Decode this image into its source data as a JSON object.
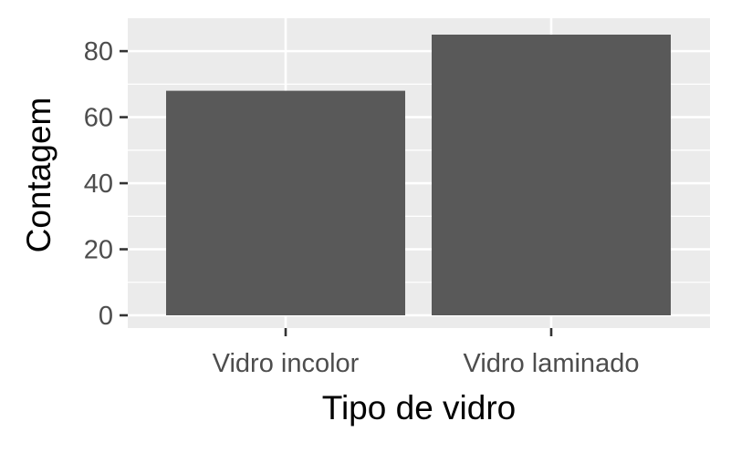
{
  "chart_data": {
    "type": "bar",
    "categories": [
      "Vidro incolor",
      "Vidro laminado"
    ],
    "values": [
      68,
      85
    ],
    "xlabel": "Tipo de vidro",
    "ylabel": "Contagem",
    "ylim": [
      0,
      89
    ],
    "yticks": [
      0,
      20,
      40,
      60,
      80
    ],
    "grid": true,
    "legend": "none",
    "colors": {
      "panel_background": "#ebebeb",
      "grid_line": "#ffffff",
      "bar_fill": "#595959",
      "tick_mark": "#333333",
      "tick_label": "#4d4d4d",
      "axis_title": "#000000"
    }
  }
}
